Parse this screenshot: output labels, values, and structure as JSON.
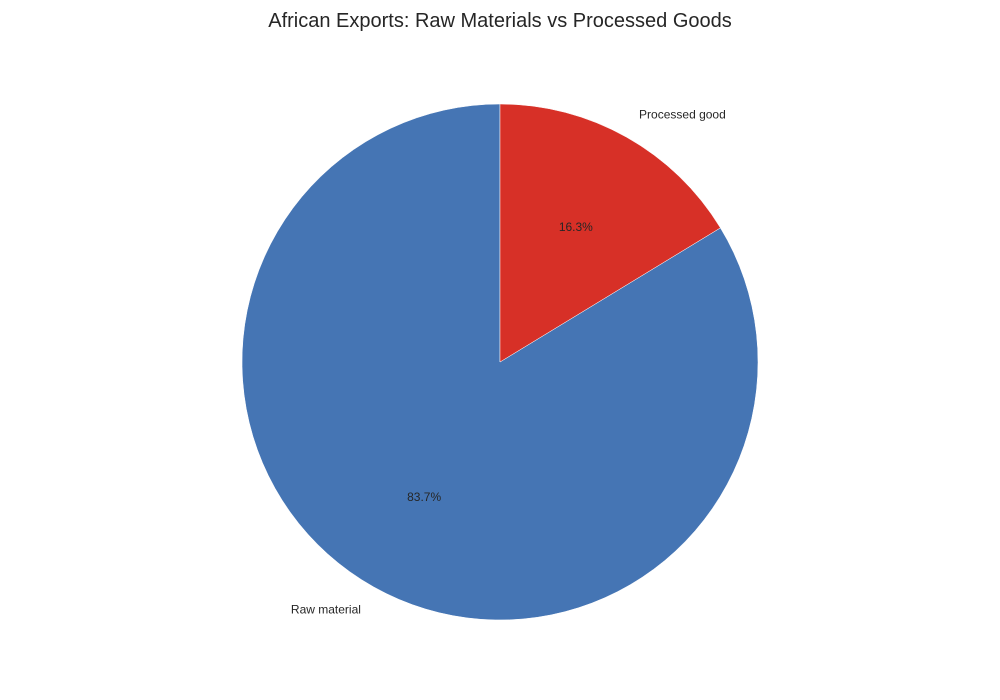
{
  "chart_data": {
    "type": "pie",
    "title": "African Exports: Raw Materials vs Processed Goods",
    "slices": [
      {
        "label": "Raw material",
        "value": 83.7,
        "pct_label": "83.7%",
        "color": "#4575b4"
      },
      {
        "label": "Processed good",
        "value": 16.3,
        "pct_label": "16.3%",
        "color": "#d73027"
      }
    ],
    "start_angle_deg": 90,
    "direction": "counterclockwise",
    "legend": "none"
  }
}
